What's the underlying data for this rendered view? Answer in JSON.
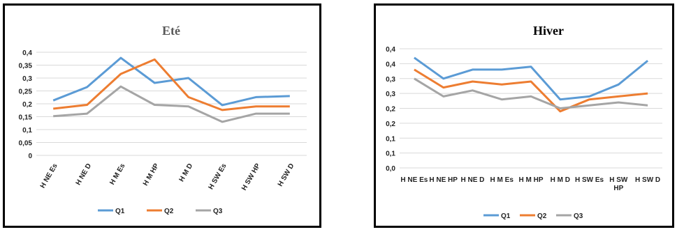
{
  "chart_data": [
    {
      "type": "line",
      "title": "Eté",
      "categories": [
        "H NE Es",
        "H NE D",
        "H M Es",
        "H M HP",
        "H M D",
        "H SW Es",
        "H SW HP",
        "H SW D"
      ],
      "ylim": [
        0,
        0.4
      ],
      "yticks": [
        "0",
        "0,05",
        "0,1",
        "0,15",
        "0,2",
        "0,25",
        "0,3",
        "0,35",
        "0,4"
      ],
      "grid": true,
      "legend": "bottom",
      "series": [
        {
          "name": "Q1",
          "color": "#5b9bd5",
          "values": [
            0.213,
            0.265,
            0.378,
            0.281,
            0.3,
            0.195,
            0.226,
            0.23
          ]
        },
        {
          "name": "Q2",
          "color": "#ed7d31",
          "values": [
            0.181,
            0.196,
            0.316,
            0.372,
            0.226,
            0.176,
            0.19,
            0.19
          ]
        },
        {
          "name": "Q3",
          "color": "#a5a5a5",
          "values": [
            0.152,
            0.162,
            0.267,
            0.196,
            0.19,
            0.13,
            0.162,
            0.162
          ]
        }
      ]
    },
    {
      "type": "line",
      "title": "Hiver",
      "categories": [
        "H NE Es",
        "H NE HP",
        "H NE D",
        "H M Es",
        "H M HP",
        "H M D",
        "H SW Es",
        "H SW HP",
        "H SW D"
      ],
      "ylim": [
        0,
        0.4
      ],
      "yticks": [
        "0,0",
        "0,1",
        "0,1",
        "0,2",
        "0,2",
        "0,3",
        "0,3",
        "0,4",
        "0,4"
      ],
      "grid": true,
      "legend": "bottom",
      "series": [
        {
          "name": "Q1",
          "color": "#5b9bd5",
          "values": [
            0.37,
            0.3,
            0.33,
            0.33,
            0.34,
            0.23,
            0.24,
            0.28,
            0.36
          ]
        },
        {
          "name": "Q2",
          "color": "#ed7d31",
          "values": [
            0.33,
            0.27,
            0.29,
            0.28,
            0.29,
            0.19,
            0.23,
            0.24,
            0.25
          ]
        },
        {
          "name": "Q3",
          "color": "#a5a5a5",
          "values": [
            0.3,
            0.24,
            0.26,
            0.23,
            0.24,
            0.2,
            0.21,
            0.22,
            0.21
          ]
        }
      ]
    }
  ]
}
